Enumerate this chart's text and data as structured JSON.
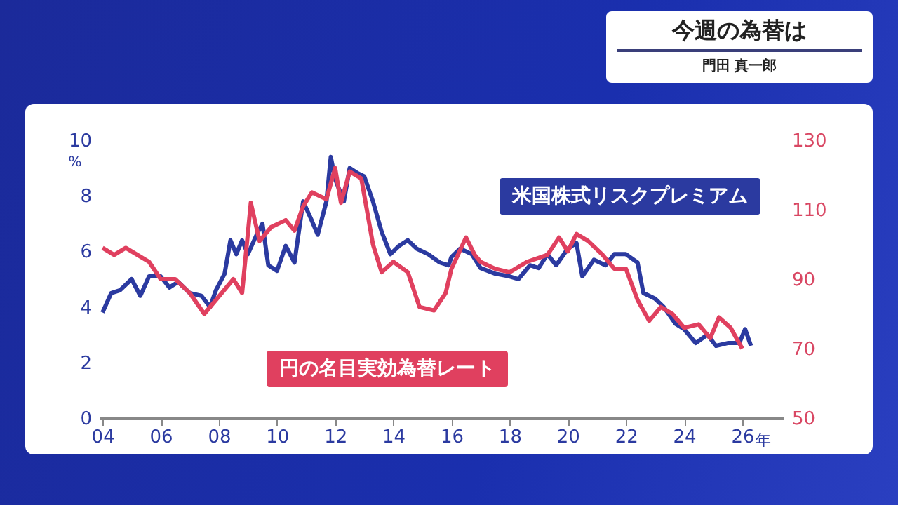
{
  "chart_data": {
    "type": "line",
    "title": "今週の為替は",
    "subtitle": "門田 真一郎",
    "ylabel": "%",
    "xlim": [
      2003.9,
      2027.4
    ],
    "xticks": [
      {
        "value": 2004,
        "label": "04"
      },
      {
        "value": 2006,
        "label": "06"
      },
      {
        "value": 2008,
        "label": "08"
      },
      {
        "value": 2010,
        "label": "10"
      },
      {
        "value": 2012,
        "label": "12"
      },
      {
        "value": 2014,
        "label": "14"
      },
      {
        "value": 2016,
        "label": "16"
      },
      {
        "value": 2018,
        "label": "18"
      },
      {
        "value": 2020,
        "label": "20"
      },
      {
        "value": 2022,
        "label": "22"
      },
      {
        "value": 2024,
        "label": "24"
      },
      {
        "value": 2026,
        "label": "26"
      }
    ],
    "xlabel": "年",
    "ylim": [
      0,
      10
    ],
    "yticks": [
      0,
      2,
      4,
      6,
      8,
      10
    ],
    "y2lim": [
      50,
      130
    ],
    "y2ticks": [
      50,
      70,
      90,
      110,
      130
    ],
    "legend": false,
    "grid": false,
    "marker": "none",
    "line_style": "solid",
    "series": [
      {
        "name": "米国株式リスクプレミアム",
        "color": "#2b3aa0",
        "x": [
          2004.0,
          2004.3,
          2004.6,
          2005.0,
          2005.3,
          2005.6,
          2006.0,
          2006.3,
          2006.6,
          2007.0,
          2007.4,
          2007.7,
          2007.9,
          2008.2,
          2008.4,
          2008.6,
          2008.8,
          2009.0,
          2009.3,
          2009.5,
          2009.7,
          2010.0,
          2010.3,
          2010.6,
          2010.9,
          2011.2,
          2011.4,
          2011.7,
          2011.85,
          2012.0,
          2012.3,
          2012.5,
          2012.8,
          2013.0,
          2013.3,
          2013.6,
          2013.9,
          2014.2,
          2014.5,
          2014.8,
          2015.2,
          2015.6,
          2015.9,
          2016.0,
          2016.3,
          2016.7,
          2017.0,
          2017.5,
          2018.0,
          2018.3,
          2018.7,
          2019.0,
          2019.3,
          2019.6,
          2020.0,
          2020.3,
          2020.5,
          2020.9,
          2021.3,
          2021.6,
          2022.0,
          2022.4,
          2022.6,
          2023.0,
          2023.3,
          2023.7,
          2024.0,
          2024.4,
          2024.8,
          2025.1,
          2025.5,
          2025.9,
          2026.1,
          2026.3
        ],
        "values": [
          3.8,
          4.5,
          4.6,
          5.0,
          4.4,
          5.1,
          5.1,
          4.7,
          4.9,
          4.5,
          4.4,
          4.0,
          4.6,
          5.2,
          6.4,
          5.9,
          6.4,
          5.9,
          6.6,
          7.0,
          5.5,
          5.3,
          6.2,
          5.6,
          7.8,
          7.1,
          6.6,
          7.8,
          9.4,
          8.6,
          7.8,
          9.0,
          8.8,
          8.7,
          7.8,
          6.7,
          5.9,
          6.2,
          6.4,
          6.1,
          5.9,
          5.6,
          5.5,
          5.8,
          6.1,
          5.9,
          5.4,
          5.2,
          5.1,
          5.0,
          5.5,
          5.4,
          5.9,
          5.5,
          6.1,
          6.3,
          5.1,
          5.7,
          5.5,
          5.9,
          5.9,
          5.6,
          4.5,
          4.3,
          4.0,
          3.4,
          3.2,
          2.7,
          3.0,
          2.6,
          2.7,
          2.7,
          3.2,
          2.6
        ]
      },
      {
        "name": "円の名目実効為替レート",
        "color": "#e0405f",
        "axis": "y2",
        "x": [
          2004.0,
          2004.4,
          2004.8,
          2005.2,
          2005.6,
          2006.0,
          2006.5,
          2007.0,
          2007.5,
          2008.0,
          2008.5,
          2008.8,
          2009.1,
          2009.4,
          2009.8,
          2010.3,
          2010.6,
          2010.9,
          2011.2,
          2011.7,
          2012.0,
          2012.2,
          2012.5,
          2012.9,
          2013.3,
          2013.6,
          2014.0,
          2014.5,
          2014.9,
          2015.4,
          2015.8,
          2016.0,
          2016.5,
          2016.8,
          2017.0,
          2017.5,
          2018.0,
          2018.6,
          2019.3,
          2019.7,
          2020.0,
          2020.3,
          2020.7,
          2021.2,
          2021.6,
          2022.0,
          2022.4,
          2022.8,
          2023.2,
          2023.6,
          2024.0,
          2024.5,
          2024.9,
          2025.2,
          2025.6,
          2026.0
        ],
        "values": [
          99,
          97,
          99,
          97,
          95,
          90,
          90,
          86,
          80,
          85,
          90,
          86,
          112,
          101,
          105,
          107,
          104,
          111,
          115,
          113,
          122,
          112,
          121,
          119,
          100,
          92,
          95,
          92,
          82,
          81,
          86,
          93,
          102,
          97,
          95,
          93,
          92,
          95,
          97,
          102,
          98,
          103,
          101,
          97,
          93,
          93,
          84,
          78,
          82,
          80,
          76,
          77,
          73,
          79,
          76,
          70
        ]
      }
    ]
  }
}
